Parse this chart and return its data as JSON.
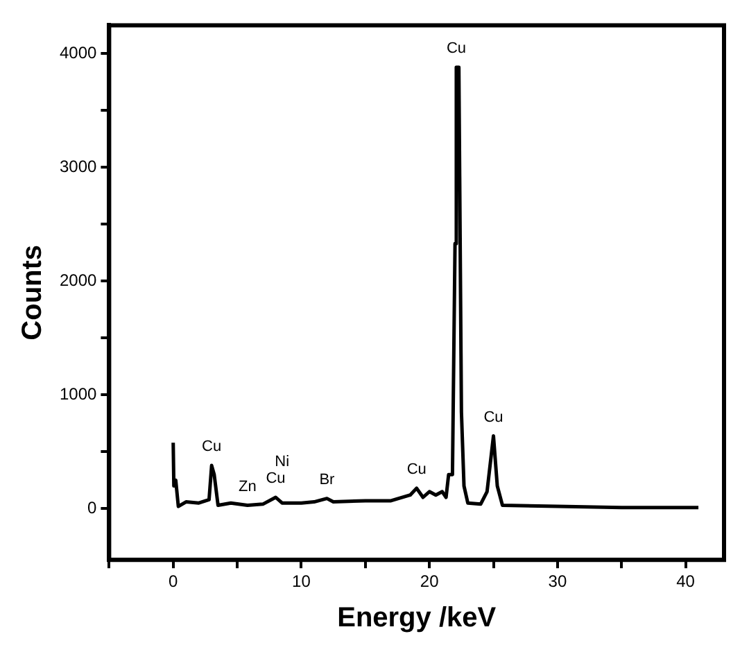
{
  "chart_data": {
    "type": "line",
    "xlabel": "Energy /keV",
    "ylabel": "Counts",
    "xlim": [
      -5,
      43
    ],
    "xticks": [
      {
        "value": -5,
        "label": null
      },
      0,
      {
        "value": 5,
        "label": null
      },
      10,
      {
        "value": 15,
        "label": null
      },
      20,
      {
        "value": 25,
        "label": null
      },
      30,
      {
        "value": 35,
        "label": null
      },
      40
    ],
    "ylim": [
      -450,
      4250
    ],
    "yticks": [
      0,
      {
        "value": 500,
        "label": null
      },
      1000,
      {
        "value": 1500,
        "label": null
      },
      2000,
      {
        "value": 2500,
        "label": null
      },
      3000,
      {
        "value": 3500,
        "label": null
      },
      4000
    ],
    "grid": false,
    "legend": false,
    "marker": "none",
    "line_style": "solid",
    "series": [
      {
        "color": "#000000",
        "x": [
          0,
          0.05,
          0.2,
          0.4,
          1,
          2,
          2.8,
          3,
          3.2,
          3.5,
          4.5,
          5.8,
          7,
          8,
          8.5,
          10,
          11,
          12,
          12.5,
          15,
          17,
          18.5,
          19,
          19.5,
          20,
          20.5,
          21,
          21.3,
          21.5,
          21.8,
          22,
          22.1,
          22.3,
          22.5,
          22.7,
          23,
          24,
          24.5,
          25,
          25.3,
          25.7,
          30,
          35,
          41
        ],
        "values": [
          580,
          200,
          250,
          20,
          60,
          50,
          80,
          380,
          300,
          30,
          50,
          30,
          40,
          100,
          50,
          50,
          60,
          90,
          60,
          70,
          70,
          120,
          180,
          100,
          150,
          120,
          150,
          100,
          300,
          300,
          2330,
          3880,
          3880,
          850,
          200,
          50,
          40,
          150,
          640,
          200,
          30,
          20,
          10,
          10
        ]
      }
    ],
    "annotations": [
      {
        "text": "Cu",
        "x": 3,
        "y": 380
      },
      {
        "text": "Zn",
        "x": 5.8,
        "y": 30
      },
      {
        "text": "Cu",
        "x": 8,
        "y": 100
      },
      {
        "text": "Ni",
        "x": 8.5,
        "y": 50
      },
      {
        "text": "Br",
        "x": 12,
        "y": 90
      },
      {
        "text": "Cu",
        "x": 19,
        "y": 180
      },
      {
        "text": "Cu",
        "x": 22.1,
        "y": 3880
      },
      {
        "text": "Cu",
        "x": 25,
        "y": 640
      }
    ]
  }
}
